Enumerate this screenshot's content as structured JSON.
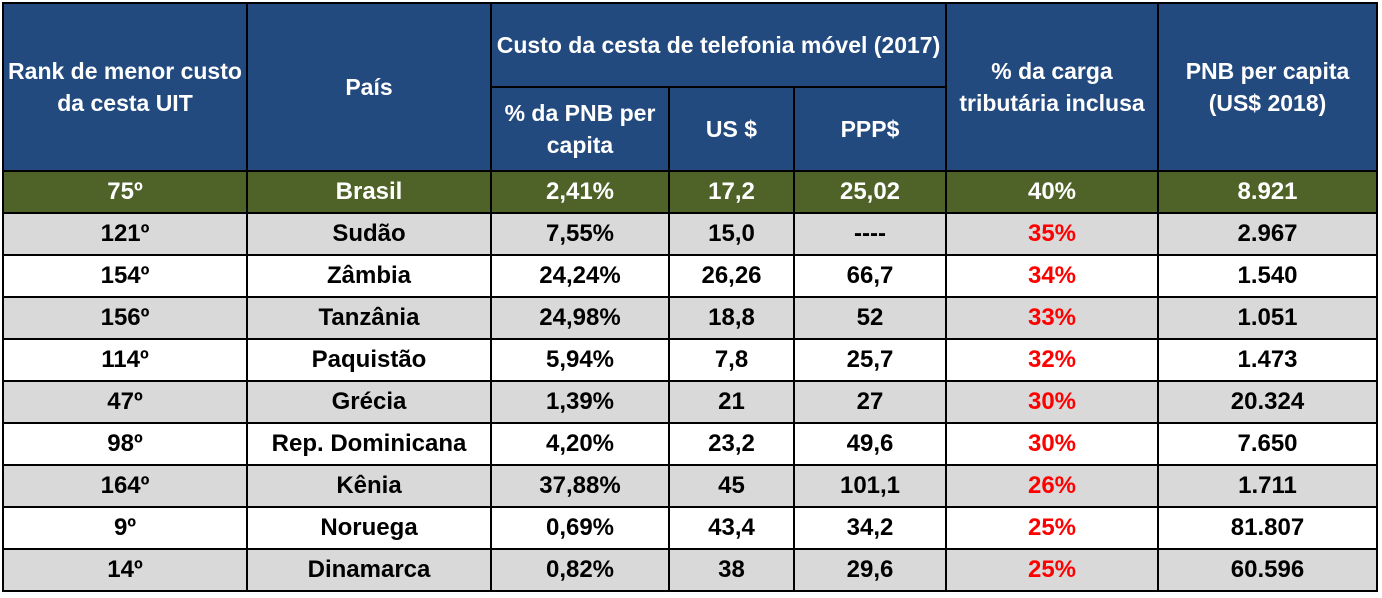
{
  "header": {
    "rank": "Rank de menor custo da cesta UIT",
    "country": "País",
    "basket_group": "Custo da cesta de telefonia móvel (2017)",
    "pct_gni": "% da PNB per capita",
    "usd": "US $",
    "ppp": "PPP$",
    "tax": "% da carga tributária inclusa",
    "gni": "PNB per capita (US$ 2018)"
  },
  "rows": [
    {
      "rank": "75º",
      "country": "Brasil",
      "pct_gni": "2,41%",
      "usd": "17,2",
      "ppp": "25,02",
      "tax": "40%",
      "gni": "8.921"
    },
    {
      "rank": "121º",
      "country": "Sudão",
      "pct_gni": "7,55%",
      "usd": "15,0",
      "ppp": "----",
      "tax": "35%",
      "gni": "2.967"
    },
    {
      "rank": "154º",
      "country": "Zâmbia",
      "pct_gni": "24,24%",
      "usd": "26,26",
      "ppp": "66,7",
      "tax": "34%",
      "gni": "1.540"
    },
    {
      "rank": "156º",
      "country": "Tanzânia",
      "pct_gni": "24,98%",
      "usd": "18,8",
      "ppp": "52",
      "tax": "33%",
      "gni": "1.051"
    },
    {
      "rank": "114º",
      "country": "Paquistão",
      "pct_gni": "5,94%",
      "usd": "7,8",
      "ppp": "25,7",
      "tax": "32%",
      "gni": "1.473"
    },
    {
      "rank": "47º",
      "country": "Grécia",
      "pct_gni": "1,39%",
      "usd": "21",
      "ppp": "27",
      "tax": "30%",
      "gni": "20.324"
    },
    {
      "rank": "98º",
      "country": "Rep. Dominicana",
      "pct_gni": "4,20%",
      "usd": "23,2",
      "ppp": "49,6",
      "tax": "30%",
      "gni": "7.650"
    },
    {
      "rank": "164º",
      "country": "Kênia",
      "pct_gni": "37,88%",
      "usd": "45",
      "ppp": "101,1",
      "tax": "26%",
      "gni": "1.711"
    },
    {
      "rank": "9º",
      "country": "Noruega",
      "pct_gni": "0,69%",
      "usd": "43,4",
      "ppp": "34,2",
      "tax": "25%",
      "gni": "81.807"
    },
    {
      "rank": "14º",
      "country": "Dinamarca",
      "pct_gni": "0,82%",
      "usd": "38",
      "ppp": "29,6",
      "tax": "25%",
      "gni": "60.596"
    }
  ],
  "colors": {
    "header_bg": "#234a7e",
    "highlight_bg": "#4f6228",
    "alt_row_bg": "#d9d9d9",
    "tax_text": "#ff0000"
  }
}
